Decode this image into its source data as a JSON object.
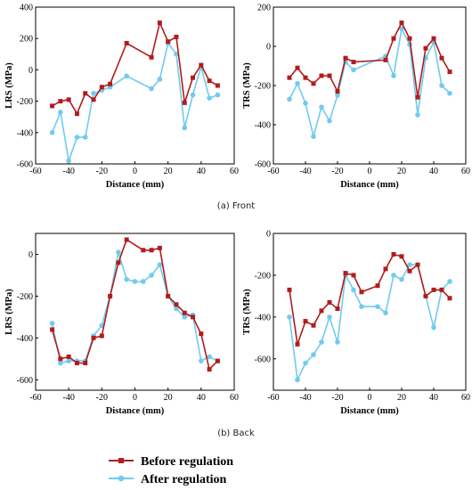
{
  "captions": {
    "front": "(a) Front",
    "back": "(b) Back"
  },
  "legend": [
    {
      "label": "Before regulation",
      "color": "#b11c1c"
    },
    {
      "label": "After regulation",
      "color": "#6fcbf0"
    }
  ],
  "chart_data": [
    {
      "type": "line",
      "panel": "front-lrs",
      "xlabel": "Distance (mm)",
      "ylabel": "LRS (MPa)",
      "xlim": [
        -60,
        60
      ],
      "ylim": [
        -600,
        400
      ],
      "xticks": [
        -60,
        -40,
        -20,
        0,
        20,
        40,
        60
      ],
      "yticks": [
        -600,
        -400,
        -200,
        0,
        200,
        400
      ],
      "series": [
        {
          "name": "Before regulation",
          "x": [
            -50,
            -45,
            -40,
            -35,
            -30,
            -25,
            -20,
            -15,
            -5,
            10,
            15,
            20,
            25,
            30,
            35,
            40,
            45,
            50
          ],
          "y": [
            -230,
            -200,
            -190,
            -280,
            -150,
            -190,
            -110,
            -90,
            170,
            80,
            300,
            180,
            210,
            -210,
            -50,
            30,
            -70,
            -100
          ]
        },
        {
          "name": "After regulation",
          "x": [
            -50,
            -45,
            -40,
            -35,
            -30,
            -25,
            -20,
            -15,
            -5,
            10,
            15,
            20,
            25,
            30,
            35,
            40,
            45,
            50
          ],
          "y": [
            -400,
            -270,
            -580,
            -430,
            -430,
            -150,
            -130,
            -110,
            -40,
            -120,
            -60,
            170,
            100,
            -370,
            -160,
            20,
            -180,
            -160
          ]
        }
      ]
    },
    {
      "type": "line",
      "panel": "front-trs",
      "xlabel": "Distance (mm)",
      "ylabel": "TRS (MPa)",
      "xlim": [
        -60,
        60
      ],
      "ylim": [
        -600,
        200
      ],
      "xticks": [
        -60,
        -40,
        -20,
        0,
        20,
        40,
        60
      ],
      "yticks": [
        -600,
        -400,
        -200,
        0,
        200
      ],
      "series": [
        {
          "name": "Before regulation",
          "x": [
            -50,
            -45,
            -40,
            -35,
            -30,
            -25,
            -20,
            -15,
            -10,
            10,
            15,
            20,
            25,
            30,
            35,
            40,
            45,
            50
          ],
          "y": [
            -160,
            -110,
            -160,
            -190,
            -150,
            -150,
            -230,
            -60,
            -80,
            -70,
            40,
            120,
            40,
            -260,
            -10,
            40,
            -60,
            -130
          ]
        },
        {
          "name": "After regulation",
          "x": [
            -50,
            -45,
            -40,
            -35,
            -30,
            -25,
            -20,
            -15,
            -10,
            10,
            15,
            20,
            25,
            30,
            35,
            40,
            45,
            50
          ],
          "y": [
            -270,
            -190,
            -290,
            -460,
            -310,
            -380,
            -250,
            -80,
            -120,
            -50,
            -150,
            90,
            10,
            -350,
            -60,
            20,
            -200,
            -240
          ]
        }
      ]
    },
    {
      "type": "line",
      "panel": "back-lrs",
      "xlabel": "Distance (mm)",
      "ylabel": "LRS (MPa)",
      "xlim": [
        -60,
        60
      ],
      "ylim": [
        -650,
        100
      ],
      "xticks": [
        -60,
        -40,
        -20,
        0,
        20,
        40,
        60
      ],
      "yticks": [
        -600,
        -400,
        -200,
        0
      ],
      "series": [
        {
          "name": "Before regulation",
          "x": [
            -50,
            -45,
            -40,
            -35,
            -30,
            -25,
            -20,
            -15,
            -10,
            -5,
            5,
            10,
            15,
            20,
            25,
            30,
            35,
            40,
            45,
            50
          ],
          "y": [
            -360,
            -500,
            -490,
            -520,
            -520,
            -400,
            -390,
            -200,
            -40,
            70,
            20,
            20,
            30,
            -200,
            -240,
            -280,
            -300,
            -380,
            -550,
            -510
          ]
        },
        {
          "name": "After regulation",
          "x": [
            -50,
            -45,
            -40,
            -35,
            -30,
            -25,
            -20,
            -15,
            -10,
            -5,
            0,
            5,
            10,
            15,
            20,
            25,
            30,
            35,
            40,
            45,
            50
          ],
          "y": [
            -330,
            -520,
            -510,
            -510,
            -510,
            -390,
            -340,
            -200,
            10,
            -120,
            -130,
            -130,
            -100,
            -50,
            -200,
            -260,
            -300,
            -290,
            -510,
            -490,
            -510
          ]
        }
      ]
    },
    {
      "type": "line",
      "panel": "back-trs",
      "xlabel": "Distance (mm)",
      "ylabel": "TRS (MPa)",
      "xlim": [
        -60,
        60
      ],
      "ylim": [
        -750,
        0
      ],
      "xticks": [
        -60,
        -40,
        -20,
        0,
        20,
        40,
        60
      ],
      "yticks": [
        -600,
        -400,
        -200,
        0
      ],
      "series": [
        {
          "name": "Before regulation",
          "x": [
            -50,
            -45,
            -40,
            -35,
            -30,
            -25,
            -20,
            -15,
            -10,
            -5,
            5,
            10,
            15,
            20,
            25,
            30,
            35,
            40,
            45,
            50
          ],
          "y": [
            -270,
            -530,
            -420,
            -440,
            -370,
            -330,
            -360,
            -190,
            -200,
            -280,
            -250,
            -170,
            -100,
            -110,
            -180,
            -150,
            -300,
            -270,
            -270,
            -310
          ]
        },
        {
          "name": "After regulation",
          "x": [
            -50,
            -45,
            -40,
            -35,
            -30,
            -25,
            -20,
            -15,
            -10,
            -5,
            5,
            10,
            15,
            20,
            25,
            30,
            35,
            40,
            45,
            50
          ],
          "y": [
            -400,
            -700,
            -620,
            -580,
            -520,
            -400,
            -520,
            -200,
            -270,
            -350,
            -350,
            -380,
            -200,
            -220,
            -150,
            -150,
            -300,
            -450,
            -270,
            -230
          ]
        }
      ]
    }
  ]
}
